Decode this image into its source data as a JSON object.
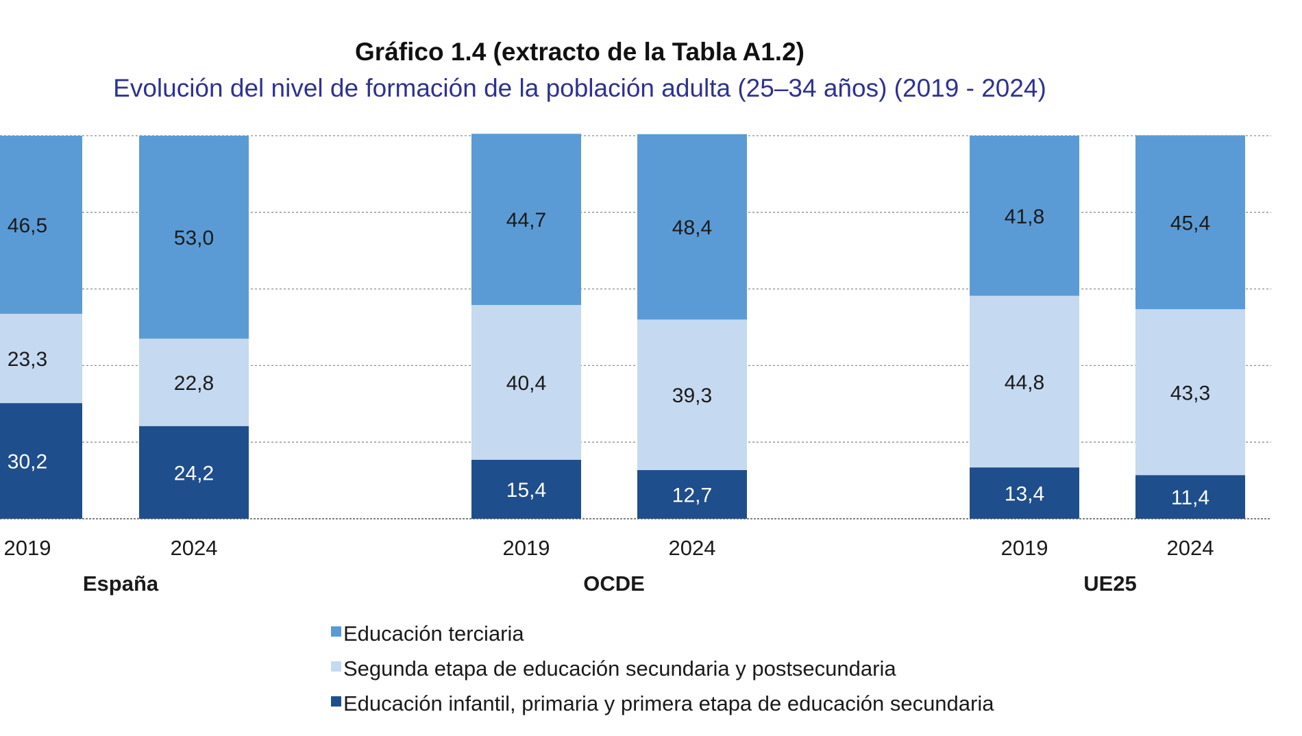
{
  "chart_data": {
    "type": "bar",
    "stacked": true,
    "title": "Gráfico 1.4 (extracto de la Tabla A1.2)",
    "subtitle": "Evolución del nivel de formación de la población adulta (25–34 años) (2019 - 2024)",
    "groups": [
      "España",
      "OCDE",
      "UE25"
    ],
    "categories": [
      "2019",
      "2024",
      "2019",
      "2024",
      "2019",
      "2024"
    ],
    "group_index": [
      0,
      0,
      1,
      1,
      2,
      2
    ],
    "series": [
      {
        "name": "Educación infantil, primaria y primera etapa de educación secundaria",
        "color": "#1f4e8c",
        "label_color": "#ffffff",
        "values": [
          30.2,
          24.2,
          15.4,
          12.7,
          13.4,
          11.4
        ],
        "labels": [
          "30,2",
          "24,2",
          "15,4",
          "12,7",
          "13,4",
          "11,4"
        ]
      },
      {
        "name": "Segunda etapa de educación secundaria y postsecundaria",
        "color": "#c5d9f1",
        "label_color": "#1a1a1a",
        "values": [
          23.3,
          22.8,
          40.4,
          39.3,
          44.8,
          43.3
        ],
        "labels": [
          "23,3",
          "22,8",
          "40,4",
          "39,3",
          "44,8",
          "43,3"
        ]
      },
      {
        "name": "Educación terciaria",
        "color": "#5b9bd5",
        "label_color": "#1a1a1a",
        "values": [
          46.5,
          53.0,
          44.7,
          48.4,
          41.8,
          45.4
        ],
        "labels": [
          "46,5",
          "53,0",
          "44,7",
          "48,4",
          "41,8",
          "45,4"
        ]
      }
    ],
    "legend_order": [
      2,
      1,
      0
    ],
    "ylim": [
      0,
      100
    ],
    "grid": true,
    "legend_position": "bottom"
  }
}
